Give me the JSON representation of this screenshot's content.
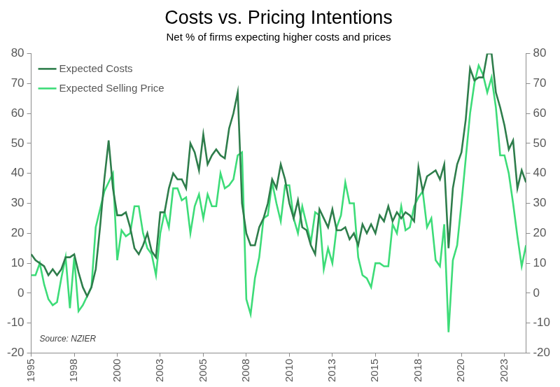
{
  "chart_data": {
    "type": "line",
    "title": "Costs vs. Pricing Intentions",
    "subtitle": "Net % of firms expecting higher costs and prices",
    "annotations": [
      "Source: NZIER"
    ],
    "categories": [
      "1995",
      null,
      null,
      null,
      null,
      null,
      null,
      null,
      null,
      null,
      "1998",
      null,
      null,
      null,
      null,
      null,
      null,
      null,
      null,
      null,
      "2000",
      null,
      null,
      null,
      null,
      null,
      null,
      null,
      null,
      null,
      "2003",
      null,
      null,
      null,
      null,
      null,
      null,
      null,
      null,
      null,
      "2005",
      null,
      null,
      null,
      null,
      null,
      null,
      null,
      null,
      null,
      "2008",
      null,
      null,
      null,
      null,
      null,
      null,
      null,
      null,
      null,
      "2010",
      null,
      null,
      null,
      null,
      null,
      null,
      null,
      null,
      null,
      "2013",
      null,
      null,
      null,
      null,
      null,
      null,
      null,
      null,
      null,
      "2015",
      null,
      null,
      null,
      null,
      null,
      null,
      null,
      null,
      null,
      "2018",
      null,
      null,
      null,
      null,
      null,
      null,
      null,
      null,
      null,
      "2020",
      null,
      null,
      null,
      null,
      null,
      null,
      null,
      null,
      null,
      "2023",
      null,
      null,
      null,
      null,
      null
    ],
    "series": [
      {
        "name": "Expected Costs",
        "color": "#2e7d4b",
        "values": [
          13,
          11,
          10,
          9,
          6,
          8,
          6,
          8,
          12,
          12,
          13,
          7,
          2,
          -1,
          2,
          8,
          22,
          38,
          51,
          35,
          26,
          26,
          27,
          22,
          15,
          13,
          16,
          20,
          14,
          12,
          27,
          27,
          35,
          40,
          38,
          38,
          35,
          50,
          47,
          41,
          53,
          43,
          46,
          48,
          46,
          45,
          55,
          60,
          67,
          30,
          20,
          16,
          16,
          22,
          25,
          30,
          38,
          35,
          43,
          38,
          30,
          25,
          31,
          22,
          21,
          16,
          13,
          28,
          25,
          22,
          28,
          21,
          21,
          22,
          18,
          20,
          16,
          23,
          20,
          23,
          20,
          26,
          24,
          29,
          24,
          27,
          25,
          27,
          26,
          24,
          42,
          34,
          39,
          40,
          41,
          38,
          43,
          15,
          35,
          43,
          47,
          58,
          75,
          71,
          72,
          72,
          80,
          80,
          67,
          62,
          56,
          48,
          51,
          35,
          41,
          37
        ]
      },
      {
        "name": "Expected Selling Price",
        "color": "#3ddc78",
        "values": [
          6,
          6,
          10,
          3,
          -2,
          -4,
          -3,
          5,
          12,
          -5,
          12,
          -6,
          -4,
          -1,
          2,
          22,
          28,
          34,
          37,
          40,
          11,
          21,
          19,
          20,
          29,
          29,
          20,
          15,
          13,
          6,
          20,
          27,
          22,
          35,
          35,
          31,
          32,
          20,
          29,
          33,
          25,
          33,
          29,
          29,
          40,
          35,
          36,
          38,
          46,
          47,
          -2,
          -7,
          5,
          12,
          25,
          26,
          37,
          30,
          24,
          36,
          36,
          25,
          20,
          29,
          23,
          17,
          27,
          26,
          8,
          15,
          10,
          22,
          26,
          37,
          30,
          30,
          12,
          6,
          5,
          2,
          10,
          10,
          9,
          9,
          23,
          20,
          29,
          21,
          22,
          29,
          32,
          34,
          22,
          25,
          11,
          9,
          23,
          -13,
          11,
          16,
          30,
          45,
          60,
          70,
          76,
          73,
          67,
          72,
          62,
          46,
          46,
          40,
          30,
          19,
          9,
          16
        ]
      }
    ],
    "ylim": [
      -20,
      80
    ],
    "yticks": [
      -20,
      -10,
      0,
      10,
      20,
      30,
      40,
      50,
      60,
      70,
      80
    ],
    "y2lim": [
      -20,
      80
    ],
    "y2ticks": [
      -20,
      -10,
      0,
      10,
      20,
      30,
      40,
      50,
      60,
      70,
      80
    ],
    "grid": false,
    "legend": "top-left"
  }
}
